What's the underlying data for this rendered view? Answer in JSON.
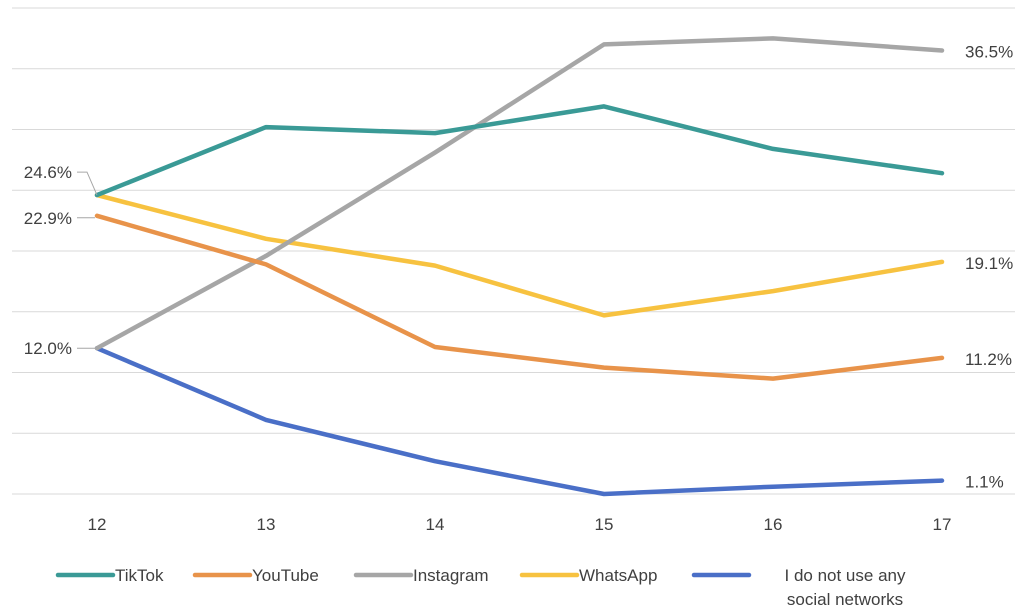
{
  "chart_data": {
    "type": "line",
    "title": "",
    "xlabel": "",
    "ylabel": "",
    "x": [
      "12",
      "13",
      "14",
      "15",
      "16",
      "17"
    ],
    "ylim": [
      0,
      40
    ],
    "grid": true,
    "legend_position": "bottom",
    "series": [
      {
        "name": "TikTok",
        "color": "#3a9a96",
        "values": [
          24.6,
          30.2,
          29.7,
          31.9,
          28.4,
          26.4
        ]
      },
      {
        "name": "YouTube",
        "color": "#e8934a",
        "values": [
          22.9,
          18.9,
          12.1,
          10.4,
          9.5,
          11.2
        ]
      },
      {
        "name": "Instagram",
        "color": "#a6a6a6",
        "values": [
          12.0,
          19.6,
          28.1,
          37.0,
          37.5,
          36.5
        ]
      },
      {
        "name": "WhatsApp",
        "color": "#f7c240",
        "values": [
          24.6,
          21.0,
          18.8,
          14.7,
          16.7,
          19.1
        ]
      },
      {
        "name": "I do not use any social networks",
        "color": "#4a6fc7",
        "values": [
          12.0,
          6.1,
          2.7,
          0.0,
          0.6,
          1.1
        ]
      }
    ],
    "annotations": [
      {
        "series": 0,
        "index": 0,
        "text": "24.6%",
        "side": "left"
      },
      {
        "series": 1,
        "index": 0,
        "text": "22.9%",
        "side": "left"
      },
      {
        "series": 2,
        "index": 0,
        "text": "12.0%",
        "side": "left"
      },
      {
        "series": 2,
        "index": 5,
        "text": "36.5%",
        "side": "right"
      },
      {
        "series": 3,
        "index": 5,
        "text": "19.1%",
        "side": "right"
      },
      {
        "series": 1,
        "index": 5,
        "text": "11.2%",
        "side": "right"
      },
      {
        "series": 4,
        "index": 5,
        "text": "1.1%",
        "side": "right"
      }
    ],
    "legend": [
      {
        "text": "TikTok",
        "series": 0
      },
      {
        "text": "YouTube",
        "series": 1
      },
      {
        "text": "Instagram",
        "series": 2
      },
      {
        "text": "WhatsApp",
        "series": 3
      },
      {
        "text": [
          "I do not use any",
          "social networks"
        ],
        "series": 4
      }
    ]
  }
}
